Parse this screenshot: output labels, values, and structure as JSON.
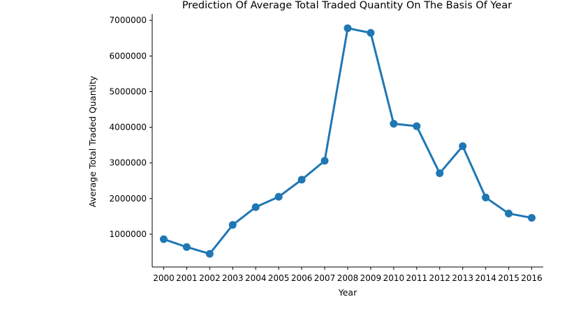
{
  "chart_data": {
    "type": "line",
    "title": "Prediction Of Average Total Traded Quantity On The Basis Of Year",
    "xlabel": "Year",
    "ylabel": "Average Total Traded Quantity",
    "categories": [
      "2000",
      "2001",
      "2002",
      "2003",
      "2004",
      "2005",
      "2006",
      "2007",
      "2008",
      "2009",
      "2010",
      "2011",
      "2012",
      "2013",
      "2014",
      "2015",
      "2016"
    ],
    "series": [
      {
        "values": [
          860000,
          640000,
          450000,
          1260000,
          1760000,
          2050000,
          2530000,
          3060000,
          6780000,
          6650000,
          4100000,
          4030000,
          2710000,
          3470000,
          2030000,
          1580000,
          1460000
        ]
      }
    ],
    "yticks": [
      1000000,
      2000000,
      3000000,
      4000000,
      5000000,
      6000000,
      7000000
    ],
    "ytick_labels": [
      "1000000",
      "2000000",
      "3000000",
      "4000000",
      "5000000",
      "6000000",
      "7000000"
    ],
    "ylim": [
      80000,
      7180000
    ],
    "grid": false,
    "color": "#1f77b4"
  }
}
